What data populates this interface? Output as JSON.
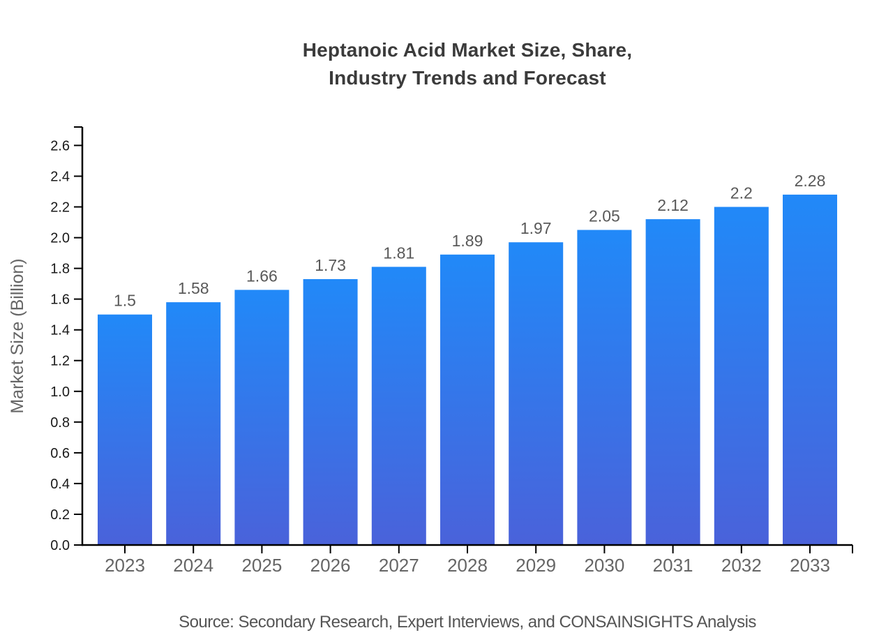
{
  "page": {
    "background": "#ffffff"
  },
  "chart_data": {
    "type": "bar",
    "title": "Heptanoic Acid Market Size, Share, Industry Trends and Forecast",
    "title_lines": [
      "Heptanoic Acid Market Size, Share,",
      "Industry Trends and Forecast"
    ],
    "xlabel": "",
    "ylabel": "Market Size (Billion)",
    "categories": [
      "2023",
      "2024",
      "2025",
      "2026",
      "2027",
      "2028",
      "2029",
      "2030",
      "2031",
      "2032",
      "2033"
    ],
    "values": [
      1.5,
      1.58,
      1.66,
      1.73,
      1.81,
      1.89,
      1.97,
      2.05,
      2.12,
      2.2,
      2.28
    ],
    "value_labels": [
      "1.5",
      "1.58",
      "1.66",
      "1.73",
      "1.81",
      "1.89",
      "1.97",
      "2.05",
      "2.12",
      "2.2",
      "2.28"
    ],
    "yticks": [
      "0.0",
      "0.2",
      "0.4",
      "0.6",
      "0.8",
      "1.0",
      "1.2",
      "1.4",
      "1.6",
      "1.8",
      "2.0",
      "2.2",
      "2.4",
      "2.6"
    ],
    "ylim": [
      0,
      2.72
    ],
    "grid": false,
    "legend": "none",
    "colors": {
      "bar_gradient_top": "#2189f8",
      "bar_gradient_bottom": "#4a62da",
      "axis": "#000000",
      "ytick_label": "#1a1a1a",
      "xtick_label": "#666666",
      "value_label": "#595959",
      "axis_title": "#666666",
      "title": "#3b3b3b",
      "source": "#555555"
    },
    "source": "Source: Secondary Research, Expert Interviews, and CONSAINSIGHTS Analysis"
  }
}
